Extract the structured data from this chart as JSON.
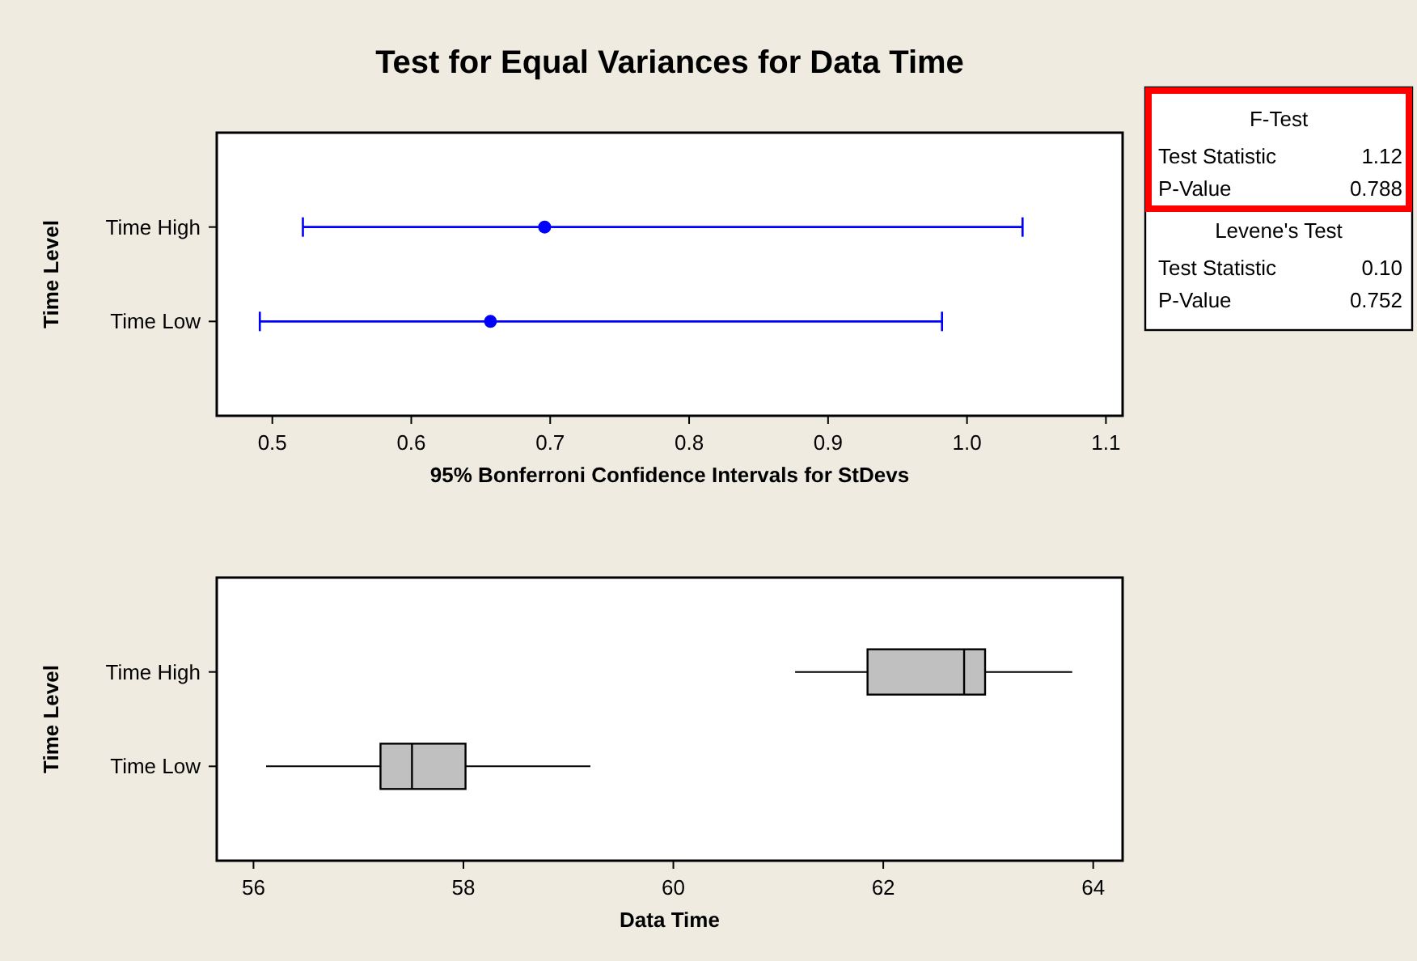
{
  "chart_data": [
    {
      "type": "scatter",
      "orientation": "horizontal",
      "title": "Test for Equal Variances for Data Time",
      "categories": [
        "Time High",
        "Time Low"
      ],
      "values": [
        0.696,
        0.657
      ],
      "errors": [
        [
          0.522,
          1.04
        ],
        [
          0.491,
          0.982
        ]
      ],
      "color": "#0000ff",
      "marker": "circle",
      "xlim": [
        0.46,
        1.112
      ],
      "xticks": [
        {
          "value": 0.5,
          "label": "0.5"
        },
        {
          "value": 0.6,
          "label": "0.6"
        },
        {
          "value": 0.7,
          "label": "0.7"
        },
        {
          "value": 0.8,
          "label": "0.8"
        },
        {
          "value": 0.9,
          "label": "0.9"
        },
        {
          "value": 1.0,
          "label": "1.0"
        },
        {
          "value": 1.1,
          "label": "1.1"
        }
      ],
      "xlabel": "95% Bonferroni Confidence Intervals for StDevs",
      "ylabel": "Time Level",
      "grid": false
    },
    {
      "type": "box",
      "orientation": "horizontal",
      "categories": [
        "Time High",
        "Time Low"
      ],
      "color": "#c0c0c0",
      "boxes": [
        {
          "low": 61.16,
          "q1": 61.85,
          "median": 62.77,
          "q3": 62.97,
          "high": 63.8
        },
        {
          "low": 56.12,
          "q1": 57.21,
          "median": 57.51,
          "q3": 58.02,
          "high": 59.21
        }
      ],
      "xlim": [
        55.65,
        64.28
      ],
      "xticks": [
        56,
        58,
        60,
        62,
        64
      ],
      "xlabel": "Data Time",
      "ylabel": "Time Level",
      "grid": false
    },
    {
      "type": "other",
      "annotations": [
        "F-Test",
        "Test Statistic",
        "1.12",
        "P-Value",
        "0.788",
        "Levene's Test",
        "Test Statistic",
        "0.10",
        "P-Value",
        "0.752"
      ]
    }
  ]
}
